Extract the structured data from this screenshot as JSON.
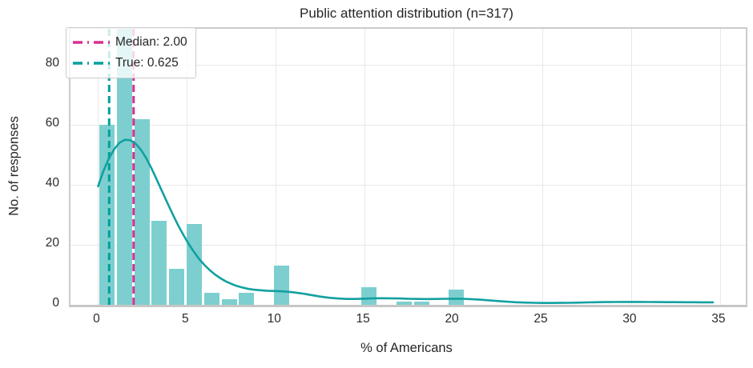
{
  "title": "Public attention distribution (n=317)",
  "axes": {
    "xlabel": "% of Americans",
    "ylabel": "No. of responses",
    "x_ticks": [
      0,
      5,
      10,
      15,
      20,
      25,
      30,
      35
    ],
    "y_ticks": [
      0,
      20,
      40,
      60,
      80
    ]
  },
  "legend": {
    "items": [
      {
        "name": "median",
        "label": "Median: 2.00",
        "color": "#d9308f"
      },
      {
        "name": "true",
        "label": "True: 0.625",
        "color": "#009e9e"
      }
    ]
  },
  "colors": {
    "bar_fill": "#7dcfcf",
    "kde_line": "#12a0a0",
    "median_line": "#d9308f",
    "true_line": "#009e9e",
    "grid": "#e8e8e8",
    "spine": "#cccccc",
    "text": "#262626"
  },
  "chart_data": {
    "type": "bar",
    "subtype": "histogram-with-kde",
    "title": "Public attention distribution (n=317)",
    "xlabel": "% of Americans",
    "ylabel": "No. of responses",
    "n": 317,
    "xlim": [
      -1.55,
      36.45
    ],
    "ylim": [
      0,
      92
    ],
    "grid": true,
    "legend_position": "upper-left",
    "bin_start": 0,
    "bin_width": 0.984,
    "bar_fill_fraction": 0.87,
    "counts": [
      60,
      92,
      62,
      28,
      12,
      27,
      4,
      2,
      4,
      0,
      13,
      0,
      0,
      0,
      0,
      6,
      0,
      1,
      1,
      0,
      5
    ],
    "vlines": [
      {
        "name": "median",
        "x": 2.0,
        "label": "Median: 2.00",
        "color": "#d9308f"
      },
      {
        "name": "true",
        "x": 0.625,
        "label": "True: 0.625",
        "color": "#009e9e"
      }
    ],
    "kde_points": [
      [
        0,
        39.5
      ],
      [
        0.3,
        44.5
      ],
      [
        0.6,
        48.7
      ],
      [
        0.9,
        51.8
      ],
      [
        1.2,
        54
      ],
      [
        1.5,
        55
      ],
      [
        1.8,
        54.9
      ],
      [
        2.1,
        53.8
      ],
      [
        2.4,
        51.8
      ],
      [
        2.7,
        49
      ],
      [
        3,
        45.6
      ],
      [
        3.3,
        41.8
      ],
      [
        3.6,
        37.9
      ],
      [
        3.9,
        34
      ],
      [
        4.2,
        30.2
      ],
      [
        4.5,
        26.6
      ],
      [
        4.8,
        23.3
      ],
      [
        5.1,
        20.3
      ],
      [
        5.4,
        17.6
      ],
      [
        5.7,
        15.2
      ],
      [
        6,
        13.2
      ],
      [
        6.3,
        11.5
      ],
      [
        6.6,
        10
      ],
      [
        6.9,
        8.8
      ],
      [
        7.2,
        7.8
      ],
      [
        7.5,
        7
      ],
      [
        7.8,
        6.3
      ],
      [
        8.1,
        5.8
      ],
      [
        8.4,
        5.4
      ],
      [
        8.7,
        5.1
      ],
      [
        9,
        4.9
      ],
      [
        9.5,
        4.7
      ],
      [
        10,
        4.6
      ],
      [
        10.5,
        4.45
      ],
      [
        11,
        4.15
      ],
      [
        11.5,
        3.75
      ],
      [
        12,
        3.25
      ],
      [
        12.5,
        2.75
      ],
      [
        13,
        2.35
      ],
      [
        13.5,
        2.1
      ],
      [
        14,
        1.95
      ],
      [
        14.5,
        1.95
      ],
      [
        15,
        2.05
      ],
      [
        15.5,
        2.15
      ],
      [
        16,
        2.2
      ],
      [
        16.5,
        2.17
      ],
      [
        17,
        2.1
      ],
      [
        17.5,
        2
      ],
      [
        18,
        1.95
      ],
      [
        18.5,
        1.92
      ],
      [
        19,
        1.95
      ],
      [
        19.5,
        2
      ],
      [
        20,
        2.02
      ],
      [
        20.5,
        2
      ],
      [
        21,
        1.88
      ],
      [
        21.5,
        1.7
      ],
      [
        22,
        1.48
      ],
      [
        22.5,
        1.25
      ],
      [
        23,
        1.03
      ],
      [
        23.5,
        0.86
      ],
      [
        24,
        0.74
      ],
      [
        24.5,
        0.66
      ],
      [
        25,
        0.62
      ],
      [
        25.5,
        0.61
      ],
      [
        26,
        0.63
      ],
      [
        26.5,
        0.67
      ],
      [
        27,
        0.73
      ],
      [
        27.5,
        0.8
      ],
      [
        28,
        0.86
      ],
      [
        28.5,
        0.91
      ],
      [
        29,
        0.94
      ],
      [
        29.5,
        0.96
      ],
      [
        30,
        0.96
      ],
      [
        30.5,
        0.95
      ],
      [
        31,
        0.93
      ],
      [
        31.5,
        0.91
      ],
      [
        32,
        0.89
      ],
      [
        32.5,
        0.87
      ],
      [
        33,
        0.86
      ],
      [
        33.5,
        0.85
      ],
      [
        34,
        0.84
      ],
      [
        34.6,
        0.83
      ]
    ]
  }
}
